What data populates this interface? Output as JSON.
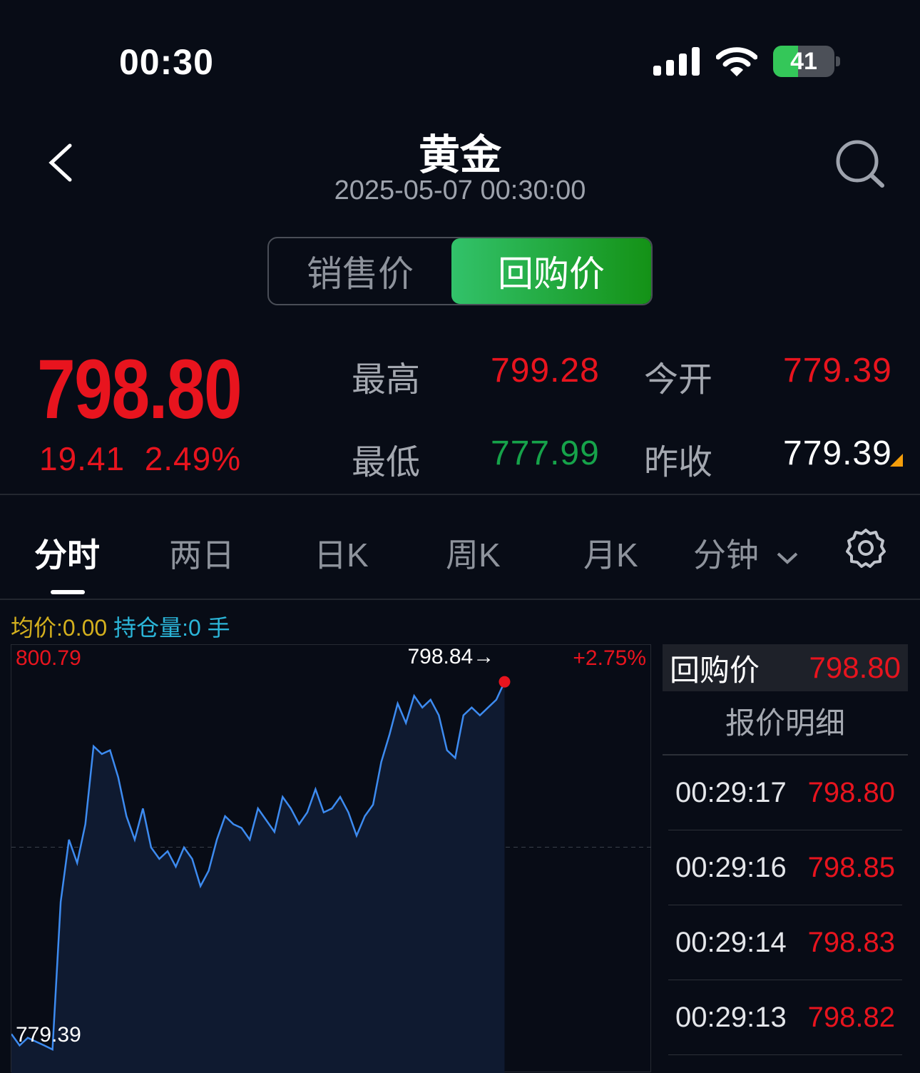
{
  "status_bar": {
    "time": "00:30",
    "battery": "41",
    "battery_level": 0.41,
    "icons": [
      "cellular-signal-icon",
      "wifi-icon",
      "battery-charging-icon"
    ]
  },
  "header": {
    "title": "黄金",
    "datetime": "2025-05-07 00:30:00",
    "back_icon": "chevron-left-icon",
    "search_icon": "search-icon"
  },
  "segment": {
    "options": [
      "销售价",
      "回购价"
    ],
    "selected": "回购价"
  },
  "quote": {
    "price": "798.80",
    "change": "19.41",
    "change_pct": "2.49%",
    "stats": [
      {
        "label": "最高",
        "value": "799.28"
      },
      {
        "label": "今开",
        "value": "779.39"
      },
      {
        "label": "最低",
        "value": "777.99"
      },
      {
        "label": "昨收",
        "value": "779.39"
      }
    ]
  },
  "tabs": {
    "items": [
      "分时",
      "两日",
      "日K",
      "周K",
      "月K",
      "分钟"
    ],
    "selected": "分时",
    "settings_icon": "gear-icon"
  },
  "legend": {
    "avg": "均价:0.00",
    "position": "持仓量:0 手"
  },
  "colors": {
    "up": "#e8141e",
    "down": "#16a34a",
    "line": "#3d8bf0",
    "avg": "#d4b01e",
    "position": "#2bb5d8",
    "accent": "#22b04a"
  },
  "chart_data": {
    "type": "area",
    "ylim": [
      779.39,
      800.79
    ],
    "y_top_label": "800.79",
    "y_bottom_label": "779.39",
    "pct_top_label": "+2.75%",
    "last_label": "798.84→",
    "last_value": 798.84,
    "reference_line": 790.09,
    "grid": false,
    "values": [
      780.21,
      779.6,
      780.01,
      779.8,
      779.6,
      779.39,
      787.2,
      790.49,
      789.26,
      791.31,
      795.43,
      795.02,
      795.22,
      793.78,
      791.73,
      790.49,
      792.14,
      790.08,
      789.47,
      789.88,
      789.06,
      790.08,
      789.47,
      788.03,
      788.85,
      790.49,
      791.73,
      791.31,
      791.11,
      790.49,
      792.14,
      791.52,
      790.9,
      792.75,
      792.14,
      791.31,
      791.93,
      793.16,
      791.93,
      792.14,
      792.75,
      791.93,
      790.7,
      791.73,
      792.34,
      794.6,
      796.04,
      797.69,
      796.66,
      798.1,
      797.48,
      797.89,
      797.07,
      795.22,
      794.81,
      797.07,
      797.48,
      797.07,
      797.48,
      797.89,
      798.84
    ]
  },
  "quote_panel": {
    "header_label": "回购价",
    "header_value": "798.80",
    "title": "报价明细",
    "rows": [
      {
        "time": "00:29:17",
        "price": "798.80"
      },
      {
        "time": "00:29:16",
        "price": "798.85"
      },
      {
        "time": "00:29:14",
        "price": "798.83"
      },
      {
        "time": "00:29:13",
        "price": "798.82"
      }
    ]
  }
}
